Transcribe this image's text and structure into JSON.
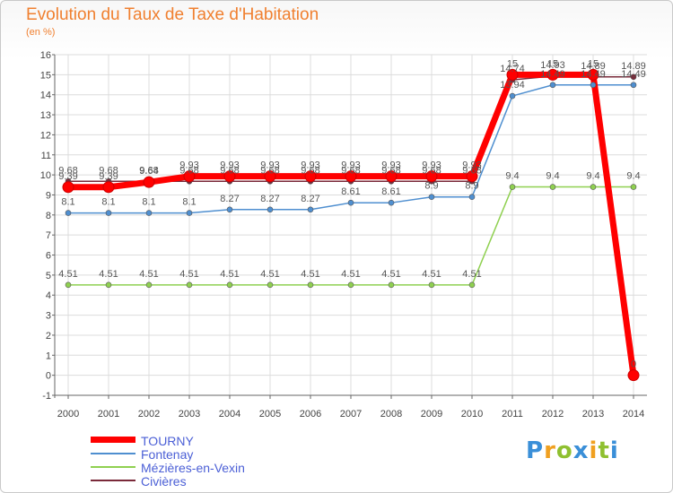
{
  "chart_data": {
    "type": "line",
    "title": "Evolution du Taux de Taxe d'Habitation",
    "subtitle": "(en %)",
    "x": [
      "2000",
      "2001",
      "2002",
      "2003",
      "2004",
      "2005",
      "2006",
      "2007",
      "2008",
      "2009",
      "2010",
      "2011",
      "2012",
      "2013",
      "2014"
    ],
    "ylim": [
      -1,
      16
    ],
    "yticks": [
      -1,
      0,
      1,
      2,
      3,
      4,
      5,
      6,
      7,
      8,
      9,
      10,
      11,
      12,
      13,
      14,
      15,
      16
    ],
    "grid": true,
    "legend_position": "bottom-left",
    "series": [
      {
        "name": "TOURNY",
        "color": "#ff0000",
        "values": [
          9.39,
          9.39,
          9.64,
          9.93,
          9.93,
          9.93,
          9.93,
          9.93,
          9.93,
          9.93,
          9.93,
          15,
          15,
          15,
          0
        ],
        "labels": [
          "9.39",
          "9.39",
          "9.64",
          "9.93",
          "9.93",
          "9.93",
          "9.93",
          "9.93",
          "9.93",
          "9.93",
          "9.93",
          "15",
          "15",
          "15",
          "0"
        ]
      },
      {
        "name": "Fontenay",
        "color": "#4f8fd0",
        "values": [
          8.1,
          8.1,
          8.1,
          8.1,
          8.27,
          8.27,
          8.27,
          8.61,
          8.61,
          8.9,
          8.9,
          13.94,
          14.49,
          14.49,
          14.49
        ],
        "labels": [
          "8.1",
          "8.1",
          "8.1",
          "8.1",
          "8.27",
          "8.27",
          "8.27",
          "8.61",
          "8.61",
          "8.9",
          "8.9",
          "13.94",
          "14.49",
          "14.49",
          "14.49"
        ]
      },
      {
        "name": "Mézières-en-Vexin",
        "color": "#8fd050",
        "values": [
          4.51,
          4.51,
          4.51,
          4.51,
          4.51,
          4.51,
          4.51,
          4.51,
          4.51,
          4.51,
          4.51,
          9.4,
          9.4,
          9.4,
          9.4
        ],
        "labels": [
          "4.51",
          "4.51",
          "4.51",
          "4.51",
          "4.51",
          "4.51",
          "4.51",
          "4.51",
          "4.51",
          "4.51",
          "4.51",
          "9.4",
          "9.4",
          "9.4",
          "9.4"
        ]
      },
      {
        "name": "Civières",
        "color": "#7a2a3a",
        "values": [
          9.68,
          9.68,
          9.68,
          9.68,
          9.68,
          9.68,
          9.68,
          9.68,
          9.68,
          9.68,
          9.68,
          14.74,
          14.93,
          14.89,
          14.89
        ],
        "labels": [
          "9.68",
          "9.68",
          "9.68",
          "9.68",
          "9.68",
          "9.68",
          "9.68",
          "9.68",
          "9.68",
          "9.68",
          "9.68",
          "14.74",
          "14.93",
          "14.89",
          "14.89"
        ]
      }
    ]
  },
  "logo": {
    "letters": [
      "P",
      "r",
      "o",
      "x",
      "i",
      "t",
      "i"
    ],
    "colors": [
      "#3a8fd8",
      "#f0a020",
      "#8fc030",
      "#3a8fd8",
      "#f0a020",
      "#8fc030",
      "#3a8fd8"
    ]
  }
}
